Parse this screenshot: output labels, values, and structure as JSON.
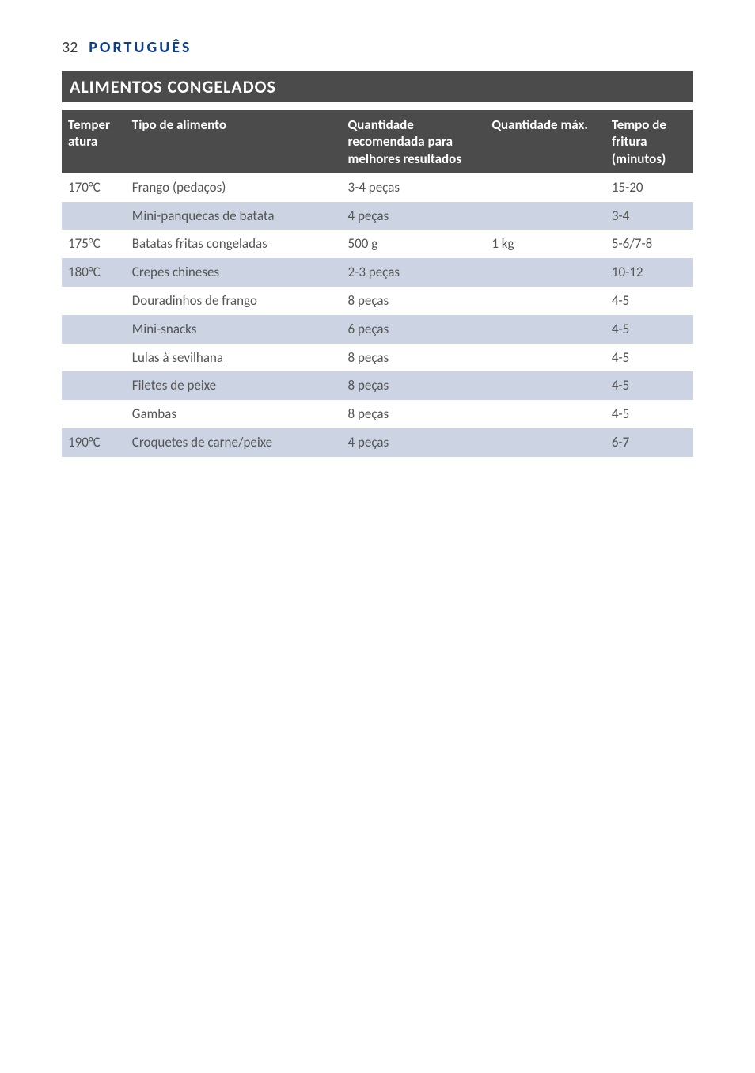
{
  "header": {
    "page_number": "32",
    "language": "PORTUGUÊS"
  },
  "section": {
    "title": "ALIMENTOS CONGELADOS"
  },
  "table": {
    "columns": {
      "temp": "Temper\natura",
      "food": "Tipo de alimento",
      "qty": "Quantidade recomendada para melhores resultados",
      "max": "Quantidade máx.",
      "time": "Tempo de fritura (minutos)"
    },
    "rows": [
      {
        "temp": "170°C",
        "food": "Frango (pedaços)",
        "qty": "3-4 peças",
        "max": "",
        "time": "15-20",
        "shaded": false
      },
      {
        "temp": "",
        "food": "Mini-panquecas de batata",
        "qty": "4 peças",
        "max": "",
        "time": "3-4",
        "shaded": true
      },
      {
        "temp": "175°C",
        "food": "Batatas fritas congeladas",
        "qty": "500 g",
        "max": "1 kg",
        "time": "5-6/7-8",
        "shaded": false
      },
      {
        "temp": "180°C",
        "food": "Crepes chineses",
        "qty": "2-3 peças",
        "max": "",
        "time": "10-12",
        "shaded": true
      },
      {
        "temp": "",
        "food": "Douradinhos de frango",
        "qty": "8 peças",
        "max": "",
        "time": "4-5",
        "shaded": false
      },
      {
        "temp": "",
        "food": "Mini-snacks",
        "qty": "6 peças",
        "max": "",
        "time": "4-5",
        "shaded": true
      },
      {
        "temp": "",
        "food": "Lulas à sevilhana",
        "qty": "8 peças",
        "max": "",
        "time": "4-5",
        "shaded": false
      },
      {
        "temp": "",
        "food": "Filetes de peixe",
        "qty": "8 peças",
        "max": "",
        "time": "4-5",
        "shaded": true
      },
      {
        "temp": "",
        "food": "Gambas",
        "qty": "8 peças",
        "max": "",
        "time": "4-5",
        "shaded": false
      },
      {
        "temp": "190°C",
        "food": "Croquetes de carne/peixe",
        "qty": "4 peças",
        "max": "",
        "time": "6-7",
        "shaded": true
      }
    ]
  },
  "colors": {
    "header_bg": "#4b4b4b",
    "header_text": "#ffffff",
    "row_shaded_bg": "#ccd4e3",
    "row_plain_bg": "#ffffff",
    "language_color": "#0e3f8a",
    "body_text": "#555555"
  }
}
